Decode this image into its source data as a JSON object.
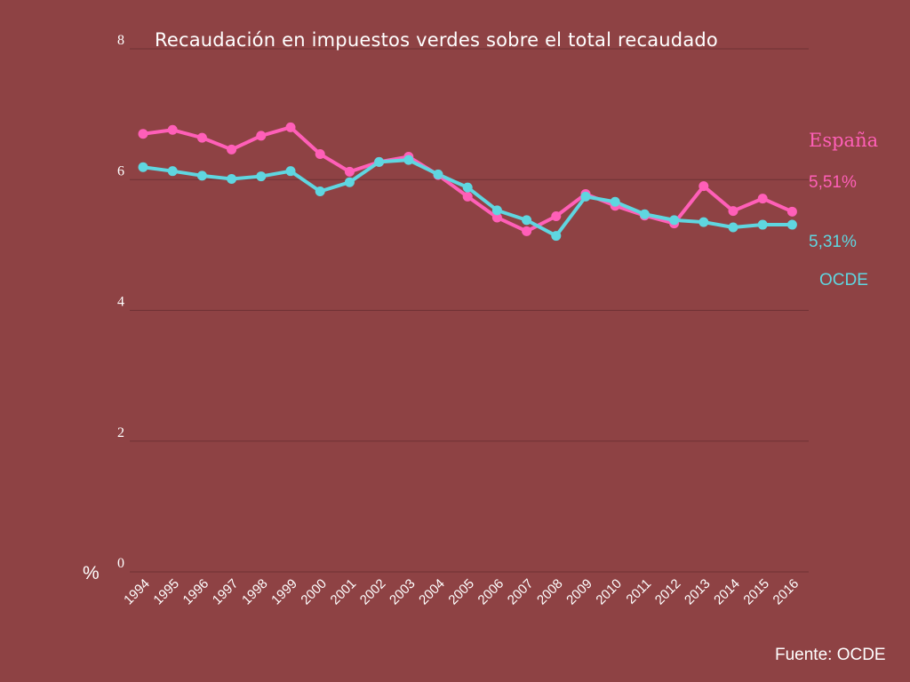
{
  "colors": {
    "background": "#8e4244",
    "grid": "#6f3134",
    "espana": "#ff5fb8",
    "ocde": "#5fd6e0",
    "text": "#ffffff"
  },
  "source": "Fuente: OCDE",
  "end_labels": {
    "espana_value": "5,51%",
    "ocde_value": "5,31%"
  },
  "chart_data": {
    "type": "line",
    "title": "Recaudación en impuestos verdes sobre el total recaudado",
    "ylabel": "%",
    "xlabel": "",
    "ylim": [
      0,
      8
    ],
    "yticks": [
      "0",
      "2",
      "4",
      "6",
      "8"
    ],
    "grid": true,
    "x": [
      "1994",
      "1995",
      "1996",
      "1997",
      "1998",
      "1999",
      "2000",
      "2001",
      "2002",
      "2003",
      "2004",
      "2005",
      "2006",
      "2007",
      "2008",
      "2009",
      "2010",
      "2011",
      "2012",
      "2013",
      "2014",
      "2015",
      "2016"
    ],
    "series": [
      {
        "name": "España",
        "color": "#ff5fb8",
        "values": [
          6.7,
          6.76,
          6.64,
          6.46,
          6.67,
          6.8,
          6.39,
          6.12,
          6.27,
          6.35,
          6.07,
          5.74,
          5.42,
          5.21,
          5.44,
          5.78,
          5.6,
          5.45,
          5.33,
          5.9,
          5.52,
          5.71,
          5.51
        ]
      },
      {
        "name": "OCDE",
        "color": "#5fd6e0",
        "values": [
          6.19,
          6.13,
          6.06,
          6.01,
          6.05,
          6.13,
          5.82,
          5.96,
          6.27,
          6.3,
          6.08,
          5.88,
          5.53,
          5.38,
          5.14,
          5.74,
          5.66,
          5.47,
          5.38,
          5.35,
          5.27,
          5.31,
          5.31
        ]
      }
    ]
  }
}
